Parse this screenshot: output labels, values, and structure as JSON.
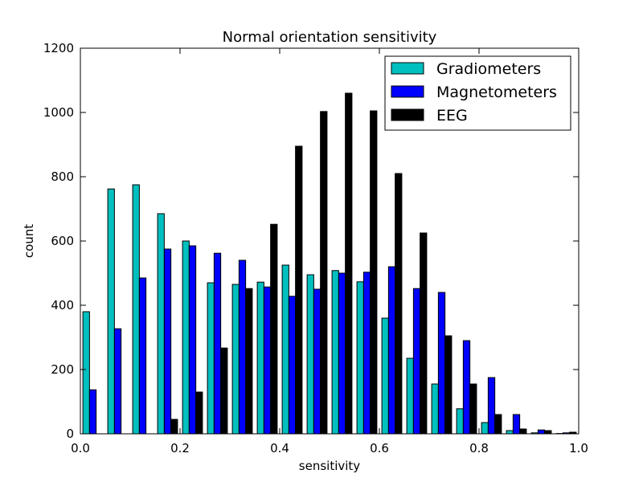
{
  "chart_data": {
    "type": "bar",
    "title": "Normal orientation sensitivity",
    "xlabel": "sensitivity",
    "ylabel": "count",
    "xlim": [
      0.0,
      1.0
    ],
    "ylim": [
      0,
      1200
    ],
    "xticks": [
      "0.0",
      "0.2",
      "0.4",
      "0.6",
      "0.8",
      "1.0"
    ],
    "yticks": [
      "0",
      "200",
      "400",
      "600",
      "800",
      "1000",
      "1200"
    ],
    "grid": false,
    "legend_position": "top-right",
    "bin_edges": [
      0.0,
      0.05,
      0.1,
      0.15,
      0.2,
      0.25,
      0.3,
      0.35,
      0.4,
      0.45,
      0.5,
      0.55,
      0.6,
      0.65,
      0.7,
      0.75,
      0.8,
      0.85,
      0.9,
      0.95,
      1.0
    ],
    "series": [
      {
        "name": "Gradiometers",
        "color": "#00bfbf",
        "values": [
          380,
          762,
          775,
          685,
          600,
          470,
          465,
          472,
          525,
          495,
          508,
          473,
          360,
          235,
          155,
          78,
          35,
          10,
          3,
          1
        ]
      },
      {
        "name": "Magnetometers",
        "color": "#0000ff",
        "values": [
          137,
          327,
          485,
          575,
          585,
          562,
          540,
          457,
          428,
          450,
          500,
          503,
          520,
          452,
          440,
          290,
          175,
          60,
          12,
          3
        ]
      },
      {
        "name": "EEG",
        "color": "#000000",
        "values": [
          0,
          0,
          0,
          45,
          130,
          267,
          452,
          652,
          895,
          1003,
          1060,
          1005,
          810,
          625,
          305,
          155,
          60,
          15,
          10,
          5
        ]
      }
    ]
  }
}
